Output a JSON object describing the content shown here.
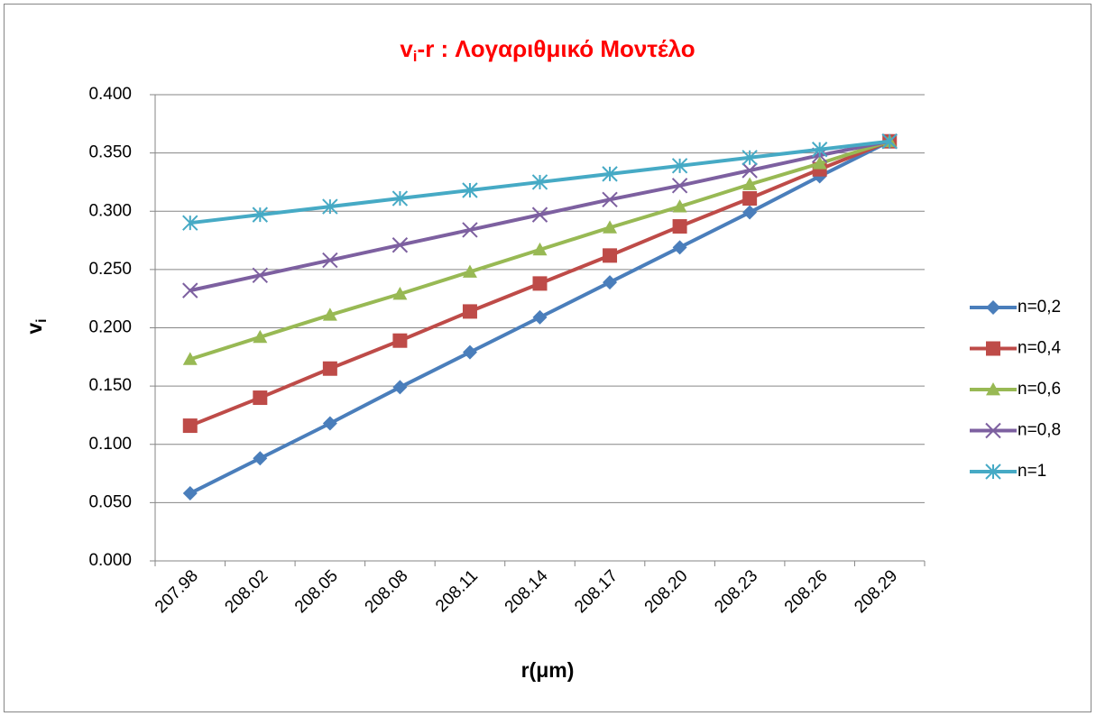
{
  "chart_data": {
    "type": "line",
    "title": [
      "v",
      "i",
      "-r : Λογαριθμικό Μοντέλο"
    ],
    "xlabel": "r(μm)",
    "ylabel": [
      "v",
      "i"
    ],
    "categories": [
      "207.98",
      "208.02",
      "208.05",
      "208.08",
      "208.11",
      "208.14",
      "208.17",
      "208.20",
      "208.23",
      "208.26",
      "208.29"
    ],
    "series": [
      {
        "name": "n=0,2",
        "color": "#4a7ebb",
        "marker": "diamond",
        "values": [
          0.058,
          0.088,
          0.118,
          0.149,
          0.179,
          0.209,
          0.239,
          0.269,
          0.299,
          0.33,
          0.36
        ]
      },
      {
        "name": "n=0,4",
        "color": "#be4b48",
        "marker": "square",
        "values": [
          0.116,
          0.14,
          0.165,
          0.189,
          0.214,
          0.238,
          0.262,
          0.287,
          0.311,
          0.336,
          0.36
        ]
      },
      {
        "name": "n=0,6",
        "color": "#98b954",
        "marker": "triangle",
        "values": [
          0.173,
          0.192,
          0.211,
          0.229,
          0.248,
          0.267,
          0.286,
          0.304,
          0.323,
          0.341,
          0.36
        ]
      },
      {
        "name": "n=0,8",
        "color": "#7d60a0",
        "marker": "x",
        "values": [
          0.232,
          0.245,
          0.258,
          0.271,
          0.284,
          0.297,
          0.31,
          0.322,
          0.335,
          0.348,
          0.36
        ]
      },
      {
        "name": "n=1",
        "color": "#46aac5",
        "marker": "star",
        "values": [
          0.29,
          0.297,
          0.304,
          0.311,
          0.318,
          0.325,
          0.332,
          0.339,
          0.346,
          0.353,
          0.36
        ]
      }
    ],
    "ylim": [
      0,
      0.4
    ],
    "yticks": [
      {
        "value": 0,
        "label": "0.000"
      },
      {
        "value": 0.05,
        "label": "0.050"
      },
      {
        "value": 0.1,
        "label": "0.100"
      },
      {
        "value": 0.15,
        "label": "0.150"
      },
      {
        "value": 0.2,
        "label": "0.200"
      },
      {
        "value": 0.25,
        "label": "0.250"
      },
      {
        "value": 0.3,
        "label": "0.300"
      },
      {
        "value": 0.35,
        "label": "0.350"
      },
      {
        "value": 0.4,
        "label": "0.400"
      }
    ],
    "grid": true,
    "legend": "right"
  }
}
